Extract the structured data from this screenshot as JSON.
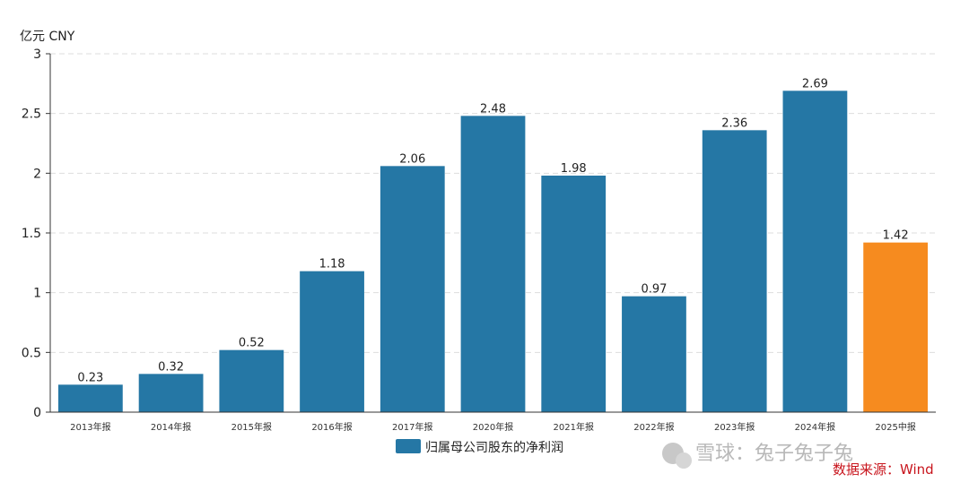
{
  "unit_label": "亿元  CNY",
  "legend": "归属母公司股东的净利润",
  "source": "数据来源：Wind",
  "watermark": "雪球：兔子兔子兔",
  "colors": {
    "primary": "#2577a5",
    "highlight": "#f68b1f",
    "grid": "#dddddd",
    "axis": "#333333"
  },
  "chart_data": {
    "type": "bar",
    "categories": [
      "2013年报",
      "2014年报",
      "2015年报",
      "2016年报",
      "2017年报",
      "2020年报",
      "2021年报",
      "2022年报",
      "2023年报",
      "2024年报",
      "2025中报"
    ],
    "values": [
      0.23,
      0.32,
      0.52,
      1.18,
      2.06,
      2.48,
      1.98,
      0.97,
      2.36,
      2.69,
      1.42
    ],
    "highlight_index": 10,
    "yticks": [
      "0",
      "0.5",
      "1",
      "1.5",
      "2",
      "2.5",
      "3"
    ],
    "ylim": [
      0,
      3
    ],
    "grid": true,
    "legend_position": "bottom"
  }
}
